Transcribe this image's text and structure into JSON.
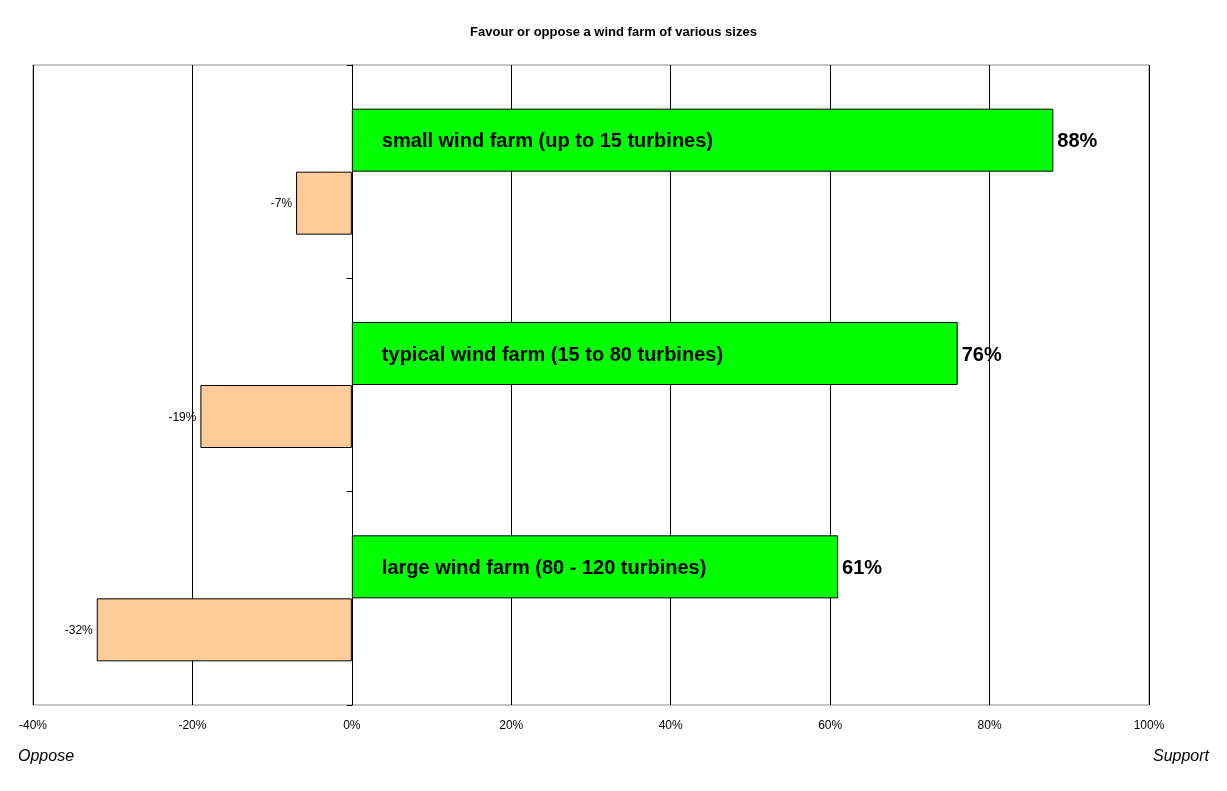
{
  "chart_data": {
    "type": "bar",
    "orientation": "horizontal",
    "title": "Favour or oppose a wind farm of various sizes",
    "categories": [
      "small wind farm (up to 15 turbines)",
      "typical wind farm (15 to 80 turbines)",
      "large wind farm (80 - 120 turbines)"
    ],
    "series": [
      {
        "color": "#00ff00",
        "values": [
          88,
          76,
          61
        ],
        "value_labels": [
          "88%",
          "76%",
          "61%"
        ]
      },
      {
        "color": "#ffcc99",
        "values": [
          -7,
          -19,
          -32
        ],
        "value_labels": [
          "-7%",
          "-19%",
          "-32%"
        ]
      }
    ],
    "xlim": [
      -40,
      100
    ],
    "xticks": [
      {
        "value": -40,
        "label": "-40%"
      },
      {
        "value": -20,
        "label": "-20%"
      },
      {
        "value": 0,
        "label": "0%"
      },
      {
        "value": 20,
        "label": "20%"
      },
      {
        "value": 40,
        "label": "40%"
      },
      {
        "value": 60,
        "label": "60%"
      },
      {
        "value": 80,
        "label": "80%"
      },
      {
        "value": 100,
        "label": "100%"
      }
    ],
    "grid": "x",
    "annotations": [
      "Oppose",
      "Support"
    ]
  }
}
